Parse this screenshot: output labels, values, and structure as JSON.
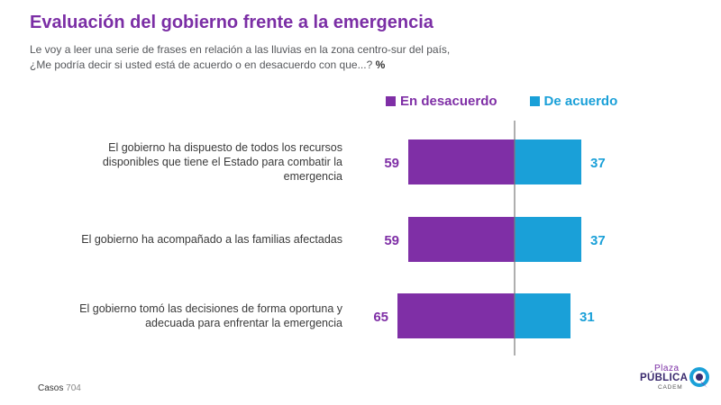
{
  "header": {
    "title": "Evaluación del gobierno frente a la emergencia",
    "subtitle_line1": "Le voy a leer una serie de frases en relación a las lluvias en la zona centro-sur del país,",
    "subtitle_line2": "¿Me podría decir si usted está de acuerdo o en desacuerdo con que...?",
    "subtitle_unit": "%"
  },
  "colors": {
    "title": "#7b2ea5",
    "desacuerdo": "#7f2fa6",
    "acuerdo": "#1aa0d8",
    "axis": "#7a7a7a"
  },
  "chart_data": {
    "type": "bar",
    "orientation": "horizontal-diverging",
    "categories": [
      "El gobierno ha dispuesto de todos los recursos disponibles que tiene el Estado para combatir la emergencia",
      "El gobierno ha acompañado a las familias afectadas",
      "El gobierno tomó las decisiones de forma oportuna y adecuada para enfrentar la emergencia"
    ],
    "category_lines": [
      [
        "El gobierno ha dispuesto de todos los recursos",
        "disponibles que tiene el Estado para combatir la",
        "emergencia"
      ],
      [
        "El gobierno ha acompañado a las familias afectadas"
      ],
      [
        "El gobierno tomó las decisiones de forma oportuna y",
        "adecuada para enfrentar la emergencia"
      ]
    ],
    "series": [
      {
        "name": "En desacuerdo",
        "values": [
          59,
          59,
          65
        ],
        "color": "#7f2fa6"
      },
      {
        "name": "De acuerdo",
        "values": [
          37,
          37,
          31
        ],
        "color": "#1aa0d8"
      }
    ],
    "unit": "%",
    "legend_position": "top-right"
  },
  "footer": {
    "casos_label": "Casos",
    "casos_value": "704"
  },
  "logo": {
    "line1": "Plaza",
    "line2": "PÚBLICA",
    "line3": "CADEM"
  }
}
